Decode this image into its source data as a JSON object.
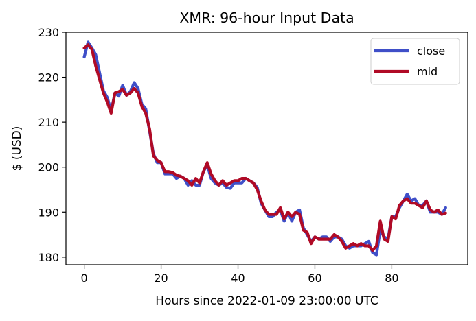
{
  "chart_data": {
    "type": "line",
    "title": "XMR: 96-hour Input Data",
    "xlabel": "Hours since 2022-01-09 23:00:00 UTC",
    "ylabel": "$ (USD)",
    "xlim": [
      -4.75,
      99.75
    ],
    "ylim": [
      178.3,
      230.0
    ],
    "xticks": [
      0,
      20,
      40,
      60,
      80
    ],
    "yticks": [
      180,
      190,
      200,
      210,
      220,
      230
    ],
    "legend_position": "top-right",
    "grid": false,
    "series": [
      {
        "name": "close",
        "color": "#3f4fc8",
        "values": [
          224.5,
          227.8,
          226.5,
          225.0,
          221.0,
          217.0,
          215.5,
          212.5,
          216.5,
          215.8,
          218.2,
          216.0,
          216.8,
          218.8,
          217.5,
          214.0,
          213.0,
          208.0,
          203.0,
          201.0,
          201.0,
          198.5,
          198.5,
          198.5,
          197.5,
          198.0,
          197.5,
          196.0,
          197.0,
          196.0,
          196.0,
          199.0,
          200.5,
          197.5,
          196.5,
          196.0,
          196.5,
          195.5,
          195.3,
          196.5,
          196.5,
          196.5,
          197.5,
          197.0,
          196.5,
          195.5,
          192.0,
          190.5,
          189.0,
          189.0,
          190.0,
          190.5,
          188.0,
          190.0,
          188.0,
          190.0,
          190.5,
          186.5,
          185.0,
          183.5,
          184.5,
          184.0,
          184.5,
          184.5,
          183.5,
          184.5,
          184.5,
          184.0,
          182.5,
          182.0,
          182.5,
          182.5,
          182.5,
          183.0,
          183.5,
          181.0,
          180.5,
          186.0,
          184.5,
          184.0,
          189.0,
          189.0,
          191.0,
          192.5,
          194.0,
          192.5,
          193.0,
          191.5,
          191.5,
          192.5,
          190.0,
          190.0,
          190.0,
          189.5,
          191.0
        ]
      },
      {
        "name": "mid",
        "color": "#b00a26",
        "values": [
          226.5,
          227.2,
          226.2,
          222.5,
          219.5,
          216.5,
          214.5,
          212.0,
          216.5,
          216.8,
          217.3,
          216.0,
          216.5,
          217.5,
          216.5,
          213.5,
          212.0,
          208.5,
          202.5,
          201.5,
          201.0,
          199.0,
          199.0,
          198.8,
          198.2,
          198.0,
          197.5,
          197.0,
          196.0,
          197.5,
          196.5,
          199.0,
          201.0,
          198.5,
          197.0,
          196.0,
          197.0,
          196.0,
          196.5,
          197.0,
          197.0,
          197.5,
          197.5,
          197.0,
          196.5,
          195.0,
          192.5,
          190.5,
          189.5,
          189.5,
          189.5,
          191.0,
          188.5,
          190.0,
          189.0,
          190.0,
          189.5,
          186.0,
          185.5,
          183.0,
          184.5,
          184.0,
          184.0,
          184.0,
          184.0,
          185.0,
          184.5,
          183.5,
          182.0,
          182.5,
          183.0,
          182.5,
          183.0,
          182.5,
          182.5,
          181.5,
          182.5,
          188.0,
          184.0,
          183.5,
          189.0,
          188.5,
          191.5,
          192.5,
          193.0,
          192.0,
          192.0,
          191.5,
          191.0,
          192.5,
          190.5,
          190.0,
          190.5,
          189.5,
          189.8
        ]
      }
    ]
  }
}
